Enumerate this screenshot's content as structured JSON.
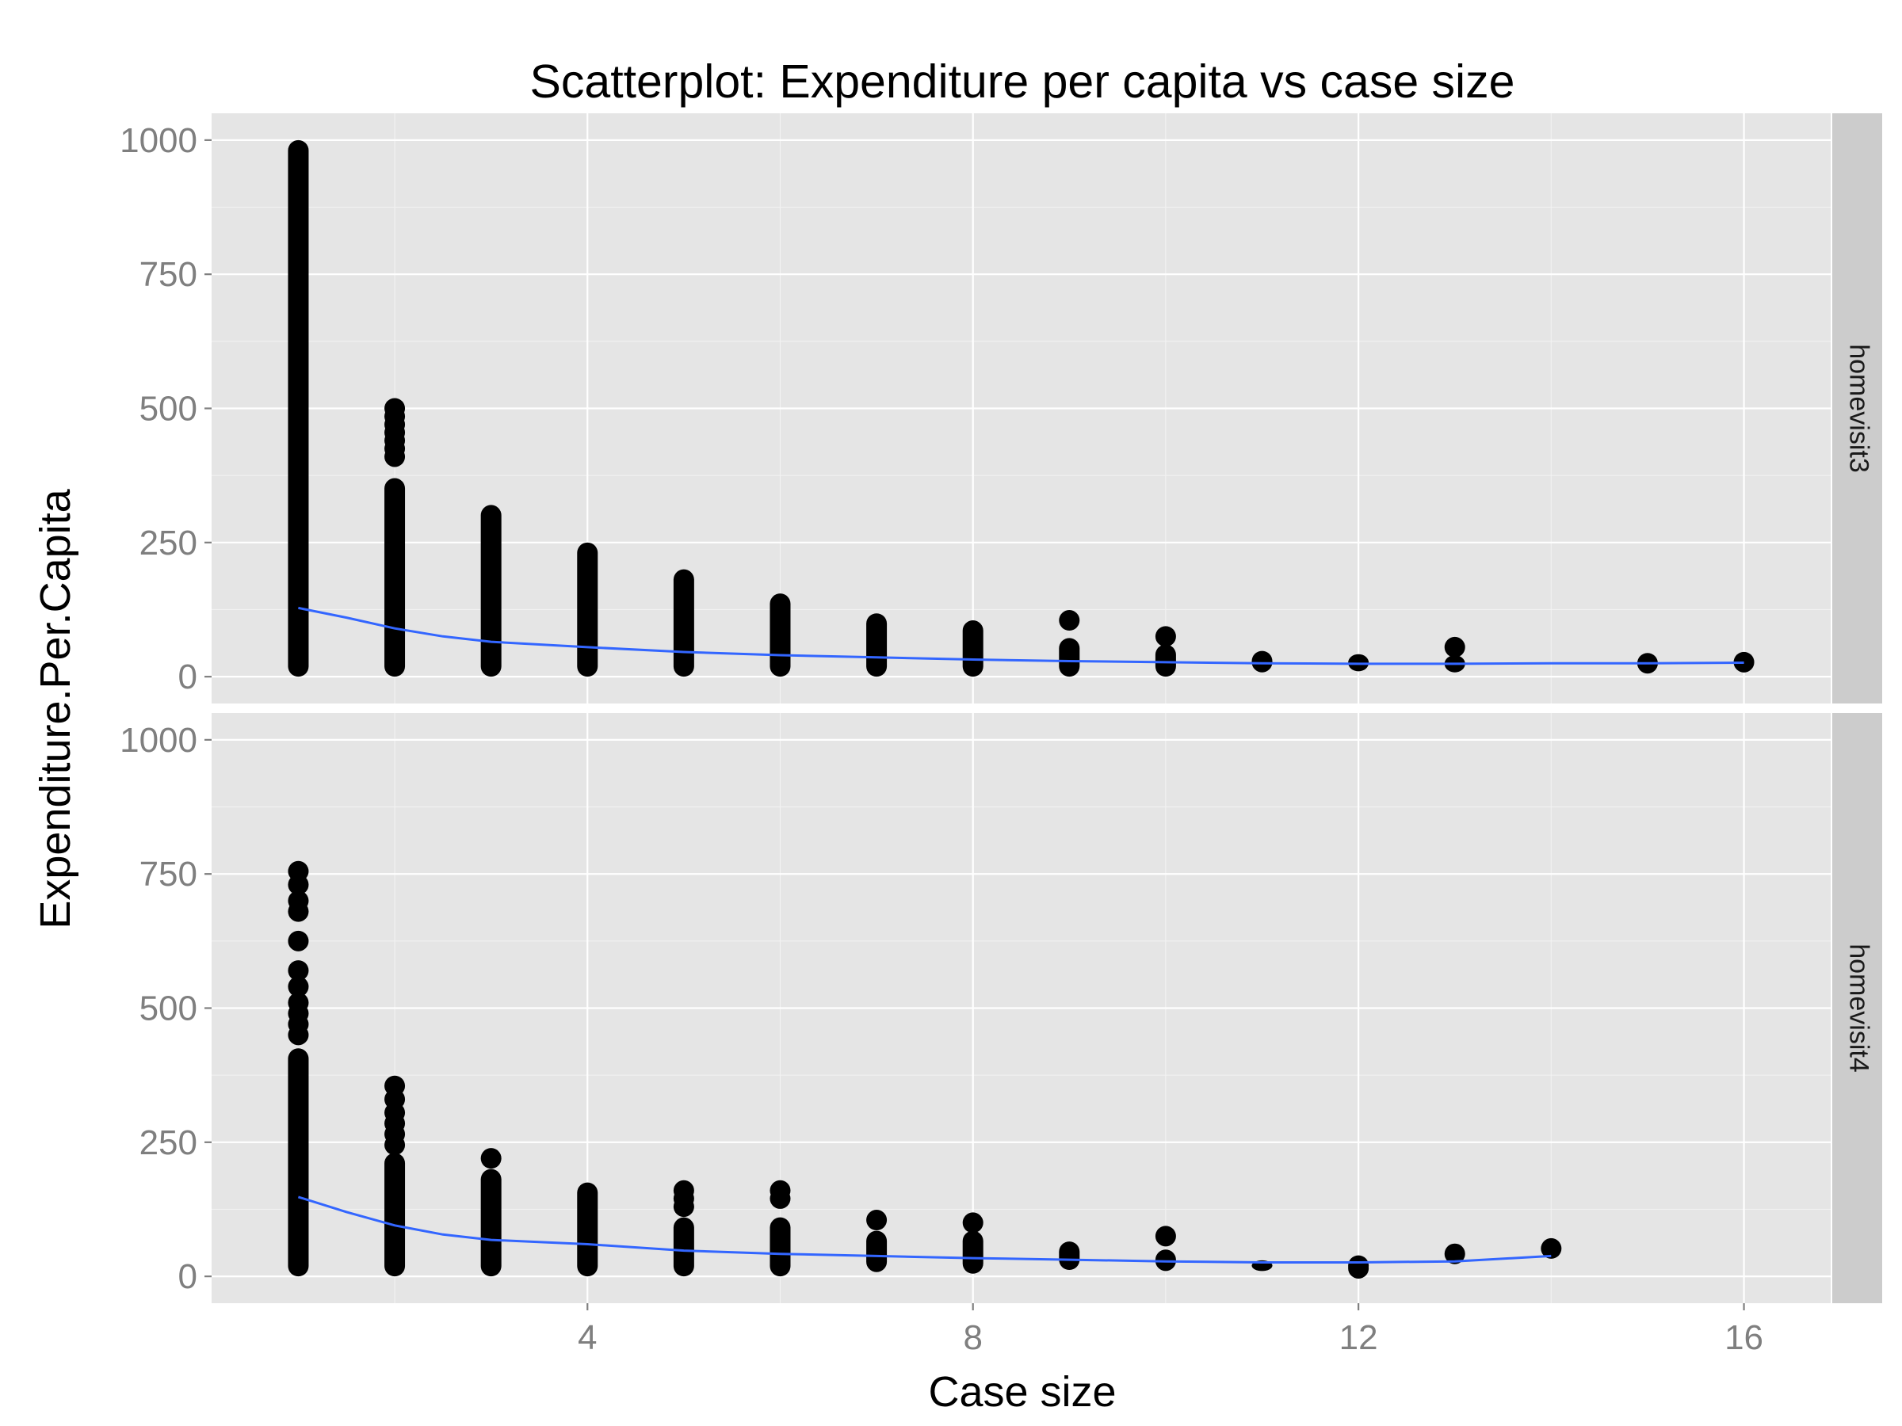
{
  "chart_data": {
    "type": "scatter",
    "title": "Scatterplot: Expenditure per capita vs case size",
    "xlabel": "Case size",
    "ylabel": "Expenditure.Per.Capita",
    "xlim": [
      0.1,
      16.9
    ],
    "ylim": [
      -50,
      1050
    ],
    "x_ticks": [
      4,
      8,
      12,
      16
    ],
    "y_ticks": [
      0,
      250,
      500,
      750,
      1000
    ],
    "grid": true,
    "facet_strip_position": "right",
    "colors": {
      "points": "#000000",
      "smooth": "#3366ff",
      "panel": "#e5e5e5",
      "strip": "#cccccc"
    },
    "panels": [
      {
        "label": "homevisit3",
        "point_ranges": [
          {
            "x": 1,
            "min": 0,
            "max": 1000
          },
          {
            "x": 2,
            "min": 0,
            "max": 370
          },
          {
            "x": 3,
            "min": 0,
            "max": 320
          },
          {
            "x": 4,
            "min": 0,
            "max": 250
          },
          {
            "x": 5,
            "min": 0,
            "max": 200
          },
          {
            "x": 6,
            "min": 0,
            "max": 155
          },
          {
            "x": 7,
            "min": 0,
            "max": 118
          },
          {
            "x": 8,
            "min": 0,
            "max": 105
          },
          {
            "x": 9,
            "min": 0,
            "max": 72
          },
          {
            "x": 10,
            "min": 0,
            "max": 60
          },
          {
            "x": 11,
            "min": 8,
            "max": 48
          },
          {
            "x": 12,
            "min": 10,
            "max": 42
          },
          {
            "x": 13,
            "min": 8,
            "max": 40
          }
        ],
        "points": [
          {
            "x": 2,
            "y": 500
          },
          {
            "x": 2,
            "y": 485
          },
          {
            "x": 2,
            "y": 470
          },
          {
            "x": 2,
            "y": 455
          },
          {
            "x": 2,
            "y": 440
          },
          {
            "x": 2,
            "y": 425
          },
          {
            "x": 2,
            "y": 410
          },
          {
            "x": 9,
            "y": 105
          },
          {
            "x": 10,
            "y": 75
          },
          {
            "x": 13,
            "y": 55
          },
          {
            "x": 15,
            "y": 25
          },
          {
            "x": 16,
            "y": 27
          }
        ],
        "smooth": [
          {
            "x": 1,
            "y": 128
          },
          {
            "x": 1.5,
            "y": 110
          },
          {
            "x": 2,
            "y": 90
          },
          {
            "x": 2.5,
            "y": 75
          },
          {
            "x": 3,
            "y": 65
          },
          {
            "x": 4,
            "y": 55
          },
          {
            "x": 5,
            "y": 46
          },
          {
            "x": 6,
            "y": 40
          },
          {
            "x": 7,
            "y": 36
          },
          {
            "x": 8,
            "y": 32
          },
          {
            "x": 9,
            "y": 29
          },
          {
            "x": 10,
            "y": 27
          },
          {
            "x": 11,
            "y": 25
          },
          {
            "x": 12,
            "y": 24
          },
          {
            "x": 13,
            "y": 24
          },
          {
            "x": 14,
            "y": 25
          },
          {
            "x": 15,
            "y": 25
          },
          {
            "x": 16,
            "y": 26
          }
        ]
      },
      {
        "label": "homevisit4",
        "point_ranges": [
          {
            "x": 1,
            "min": 0,
            "max": 425
          },
          {
            "x": 2,
            "min": 0,
            "max": 230
          },
          {
            "x": 3,
            "min": 0,
            "max": 200
          },
          {
            "x": 4,
            "min": 0,
            "max": 175
          },
          {
            "x": 5,
            "min": 0,
            "max": 110
          },
          {
            "x": 6,
            "min": 0,
            "max": 110
          },
          {
            "x": 7,
            "min": 8,
            "max": 85
          },
          {
            "x": 8,
            "min": 5,
            "max": 85
          },
          {
            "x": 9,
            "min": 12,
            "max": 65
          },
          {
            "x": 10,
            "min": 10,
            "max": 50
          },
          {
            "x": 11,
            "min": 10,
            "max": 30
          }
        ],
        "points": [
          {
            "x": 1,
            "y": 755
          },
          {
            "x": 1,
            "y": 730
          },
          {
            "x": 1,
            "y": 700
          },
          {
            "x": 1,
            "y": 680
          },
          {
            "x": 1,
            "y": 625
          },
          {
            "x": 1,
            "y": 570
          },
          {
            "x": 1,
            "y": 540
          },
          {
            "x": 1,
            "y": 510
          },
          {
            "x": 1,
            "y": 490
          },
          {
            "x": 1,
            "y": 470
          },
          {
            "x": 1,
            "y": 450
          },
          {
            "x": 2,
            "y": 355
          },
          {
            "x": 2,
            "y": 330
          },
          {
            "x": 2,
            "y": 305
          },
          {
            "x": 2,
            "y": 285
          },
          {
            "x": 2,
            "y": 265
          },
          {
            "x": 2,
            "y": 245
          },
          {
            "x": 3,
            "y": 220
          },
          {
            "x": 5,
            "y": 160
          },
          {
            "x": 5,
            "y": 145
          },
          {
            "x": 5,
            "y": 130
          },
          {
            "x": 6,
            "y": 160
          },
          {
            "x": 6,
            "y": 145
          },
          {
            "x": 7,
            "y": 105
          },
          {
            "x": 8,
            "y": 100
          },
          {
            "x": 10,
            "y": 75
          },
          {
            "x": 12,
            "y": 20
          },
          {
            "x": 12,
            "y": 15
          },
          {
            "x": 13,
            "y": 42
          },
          {
            "x": 14,
            "y": 52
          }
        ],
        "smooth": [
          {
            "x": 1,
            "y": 148
          },
          {
            "x": 1.5,
            "y": 120
          },
          {
            "x": 2,
            "y": 95
          },
          {
            "x": 2.5,
            "y": 78
          },
          {
            "x": 3,
            "y": 68
          },
          {
            "x": 4,
            "y": 60
          },
          {
            "x": 5,
            "y": 48
          },
          {
            "x": 6,
            "y": 42
          },
          {
            "x": 7,
            "y": 38
          },
          {
            "x": 8,
            "y": 34
          },
          {
            "x": 9,
            "y": 31
          },
          {
            "x": 10,
            "y": 28
          },
          {
            "x": 11,
            "y": 26
          },
          {
            "x": 12,
            "y": 26
          },
          {
            "x": 13,
            "y": 28
          },
          {
            "x": 14,
            "y": 38
          }
        ]
      }
    ]
  }
}
